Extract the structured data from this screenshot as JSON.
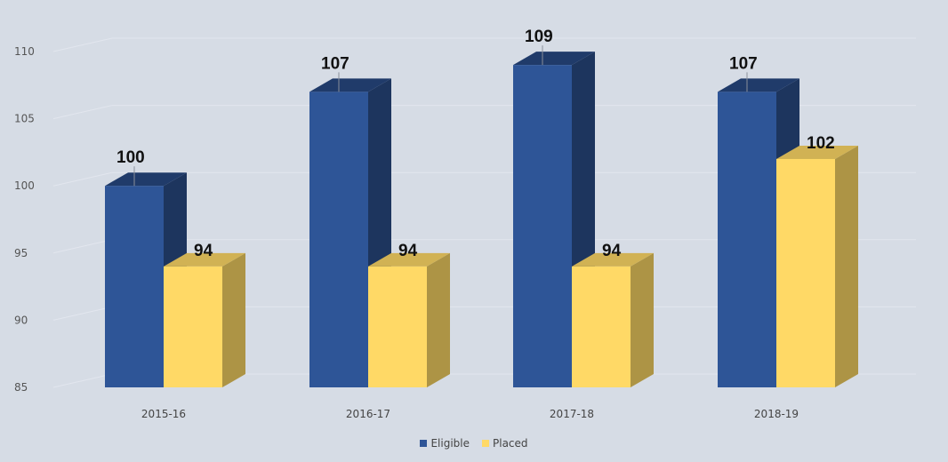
{
  "chart_data": {
    "type": "bar",
    "categories": [
      "2015-16",
      "2016-17",
      "2017-18",
      "2018-19"
    ],
    "series": [
      {
        "name": "Eligible",
        "values": [
          100,
          107,
          109,
          107
        ],
        "color": "#2e5597"
      },
      {
        "name": "Placed",
        "values": [
          94,
          94,
          94,
          102
        ],
        "color": "#ffd966"
      }
    ],
    "y_ticks": [
      85,
      90,
      95,
      100,
      105,
      110
    ],
    "ylim": [
      85,
      110
    ],
    "title": "",
    "xlabel": "",
    "ylabel": "",
    "legend_position": "bottom-center",
    "grid": false,
    "style": "3d-column"
  }
}
